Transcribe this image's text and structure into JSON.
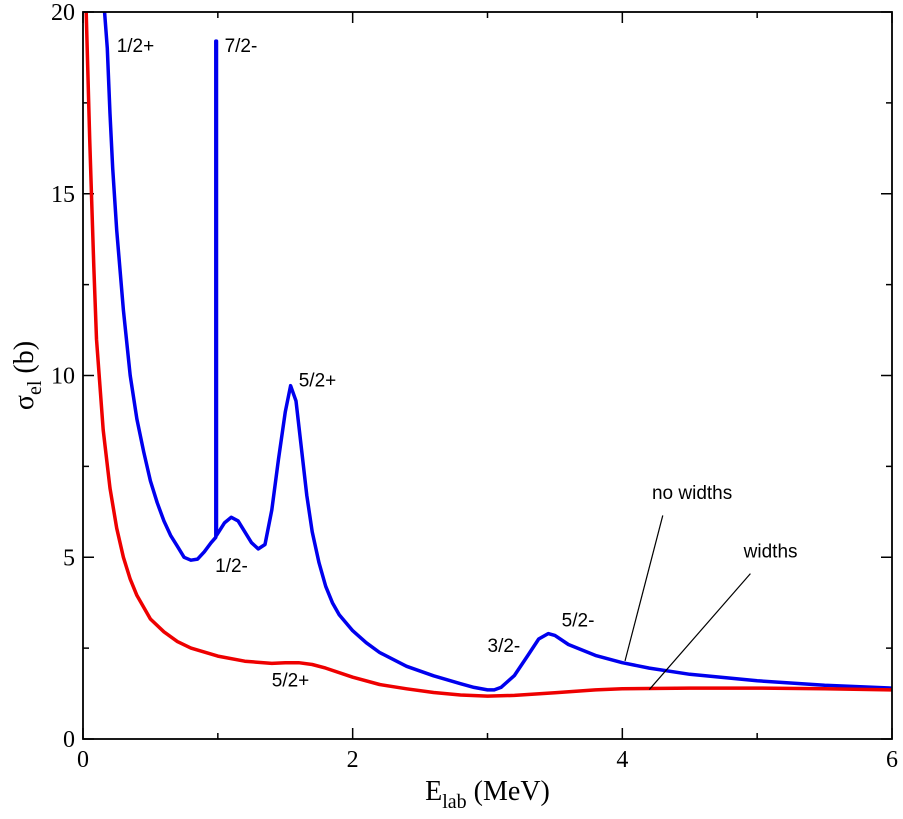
{
  "chart_data": {
    "type": "line",
    "title": "",
    "xlabel": {
      "main": "E",
      "sub": "lab",
      "rest": " (MeV)"
    },
    "ylabel": {
      "main": "σ",
      "sub": "el",
      "rest": " (b)"
    },
    "xlim": [
      0,
      6
    ],
    "ylim": [
      0,
      20
    ],
    "xticks": [
      0,
      2,
      4,
      6
    ],
    "yticks": [
      0,
      5,
      10,
      15,
      20
    ],
    "grid": false,
    "series": [
      {
        "name": "no widths",
        "color": "#0000ee",
        "points": [
          [
            0.15,
            20.5
          ],
          [
            0.18,
            19.0
          ],
          [
            0.2,
            17.2
          ],
          [
            0.22,
            15.7
          ],
          [
            0.25,
            14.0
          ],
          [
            0.3,
            11.8
          ],
          [
            0.35,
            10.0
          ],
          [
            0.4,
            8.8
          ],
          [
            0.45,
            7.9
          ],
          [
            0.5,
            7.1
          ],
          [
            0.55,
            6.5
          ],
          [
            0.6,
            6.0
          ],
          [
            0.65,
            5.6
          ],
          [
            0.7,
            5.3
          ],
          [
            0.75,
            5.0
          ],
          [
            0.8,
            4.92
          ],
          [
            0.85,
            4.95
          ],
          [
            0.9,
            5.15
          ],
          [
            0.95,
            5.4
          ],
          [
            0.985,
            5.55
          ],
          [
            0.985,
            19.2
          ],
          [
            0.99,
            19.2
          ],
          [
            0.99,
            5.6
          ],
          [
            1.05,
            5.95
          ],
          [
            1.1,
            6.1
          ],
          [
            1.15,
            6.0
          ],
          [
            1.2,
            5.7
          ],
          [
            1.25,
            5.4
          ],
          [
            1.3,
            5.23
          ],
          [
            1.35,
            5.35
          ],
          [
            1.4,
            6.3
          ],
          [
            1.45,
            7.7
          ],
          [
            1.5,
            9.0
          ],
          [
            1.54,
            9.72
          ],
          [
            1.58,
            9.3
          ],
          [
            1.62,
            8.0
          ],
          [
            1.66,
            6.7
          ],
          [
            1.7,
            5.7
          ],
          [
            1.75,
            4.85
          ],
          [
            1.8,
            4.2
          ],
          [
            1.85,
            3.75
          ],
          [
            1.9,
            3.42
          ],
          [
            2.0,
            2.98
          ],
          [
            2.1,
            2.65
          ],
          [
            2.2,
            2.38
          ],
          [
            2.4,
            2.0
          ],
          [
            2.6,
            1.74
          ],
          [
            2.8,
            1.52
          ],
          [
            2.9,
            1.42
          ],
          [
            3.0,
            1.35
          ],
          [
            3.05,
            1.35
          ],
          [
            3.1,
            1.42
          ],
          [
            3.2,
            1.75
          ],
          [
            3.3,
            2.3
          ],
          [
            3.38,
            2.75
          ],
          [
            3.45,
            2.9
          ],
          [
            3.5,
            2.85
          ],
          [
            3.6,
            2.6
          ],
          [
            3.8,
            2.3
          ],
          [
            4.0,
            2.1
          ],
          [
            4.2,
            1.95
          ],
          [
            4.5,
            1.78
          ],
          [
            5.0,
            1.6
          ],
          [
            5.5,
            1.48
          ],
          [
            6.0,
            1.4
          ]
        ]
      },
      {
        "name": "widths",
        "color": "#ee0000",
        "points": [
          [
            0.02,
            20.5
          ],
          [
            0.05,
            16.5
          ],
          [
            0.08,
            13.0
          ],
          [
            0.1,
            11.0
          ],
          [
            0.15,
            8.5
          ],
          [
            0.2,
            6.9
          ],
          [
            0.25,
            5.8
          ],
          [
            0.3,
            5.0
          ],
          [
            0.35,
            4.4
          ],
          [
            0.4,
            3.95
          ],
          [
            0.5,
            3.3
          ],
          [
            0.6,
            2.95
          ],
          [
            0.7,
            2.68
          ],
          [
            0.8,
            2.5
          ],
          [
            1.0,
            2.28
          ],
          [
            1.2,
            2.14
          ],
          [
            1.4,
            2.08
          ],
          [
            1.5,
            2.1
          ],
          [
            1.6,
            2.1
          ],
          [
            1.7,
            2.05
          ],
          [
            1.8,
            1.95
          ],
          [
            2.0,
            1.7
          ],
          [
            2.2,
            1.5
          ],
          [
            2.4,
            1.38
          ],
          [
            2.6,
            1.28
          ],
          [
            2.8,
            1.21
          ],
          [
            3.0,
            1.18
          ],
          [
            3.2,
            1.2
          ],
          [
            3.5,
            1.27
          ],
          [
            3.8,
            1.35
          ],
          [
            4.0,
            1.38
          ],
          [
            4.5,
            1.4
          ],
          [
            5.0,
            1.4
          ],
          [
            5.5,
            1.38
          ],
          [
            6.0,
            1.35
          ]
        ]
      }
    ],
    "annotations": [
      {
        "text": "1/2+",
        "x": 0.25,
        "y": 18.9
      },
      {
        "text": "7/2-",
        "x": 1.05,
        "y": 18.9
      },
      {
        "text": "5/2+",
        "x": 1.6,
        "y": 9.7
      },
      {
        "text": "1/2-",
        "x": 0.98,
        "y": 4.6
      },
      {
        "text": "5/2+",
        "x": 1.4,
        "y": 1.45
      },
      {
        "text": "3/2-",
        "x": 3.0,
        "y": 2.4
      },
      {
        "text": "5/2-",
        "x": 3.55,
        "y": 3.1
      },
      {
        "text": "no widths",
        "x": 4.22,
        "y": 6.6
      },
      {
        "text": "widths",
        "x": 4.9,
        "y": 5.0
      }
    ],
    "leader_lines": [
      {
        "label": "no widths",
        "from": [
          4.3,
          6.15
        ],
        "to": [
          4.02,
          2.15
        ]
      },
      {
        "label": "widths",
        "from": [
          4.95,
          4.55
        ],
        "to": [
          4.2,
          1.36
        ]
      }
    ]
  }
}
